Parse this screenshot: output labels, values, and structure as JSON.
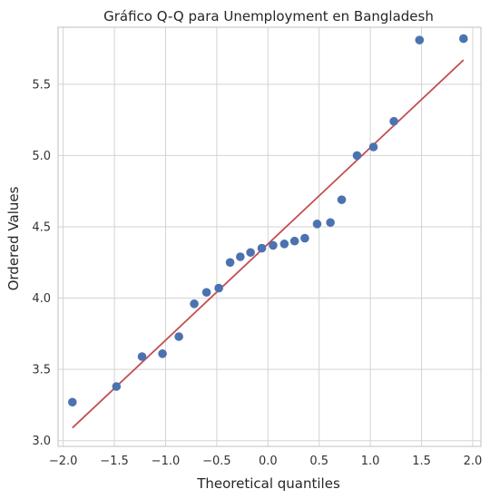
{
  "chart_data": {
    "type": "scatter",
    "title": "Gráfico Q-Q para Unemployment en Bangladesh",
    "xlabel": "Theoretical quantiles",
    "ylabel": "Ordered Values",
    "xlim": [
      -2.05,
      2.08
    ],
    "ylim": [
      2.96,
      5.9
    ],
    "x_ticks": [
      -2.0,
      -1.5,
      -1.0,
      -0.5,
      0.0,
      0.5,
      1.0,
      1.5,
      2.0
    ],
    "x_tick_labels": [
      "−2.0",
      "−1.5",
      "−1.0",
      "−0.5",
      "0.0",
      "0.5",
      "1.0",
      "1.5",
      "2.0"
    ],
    "y_ticks": [
      3.0,
      3.5,
      4.0,
      4.5,
      5.0,
      5.5
    ],
    "y_tick_labels": [
      "3.0",
      "3.5",
      "4.0",
      "4.5",
      "5.0",
      "5.5"
    ],
    "grid": true,
    "points": {
      "x": [
        -1.91,
        -1.48,
        -1.23,
        -1.03,
        -0.87,
        -0.72,
        -0.6,
        -0.48,
        -0.37,
        -0.27,
        -0.17,
        -0.06,
        0.05,
        0.16,
        0.26,
        0.36,
        0.48,
        0.61,
        0.72,
        0.87,
        1.03,
        1.23,
        1.48,
        1.91
      ],
      "y": [
        3.27,
        3.38,
        3.59,
        3.61,
        3.73,
        3.96,
        4.04,
        4.07,
        4.25,
        4.29,
        4.32,
        4.35,
        4.37,
        4.38,
        4.4,
        4.42,
        4.52,
        4.53,
        4.69,
        5.0,
        5.06,
        5.24,
        5.81,
        5.82
      ],
      "color": "#4c72b0"
    },
    "fit_line": {
      "x": [
        -1.91,
        1.91
      ],
      "y": [
        3.09,
        5.67
      ],
      "color": "#c44e52"
    }
  }
}
